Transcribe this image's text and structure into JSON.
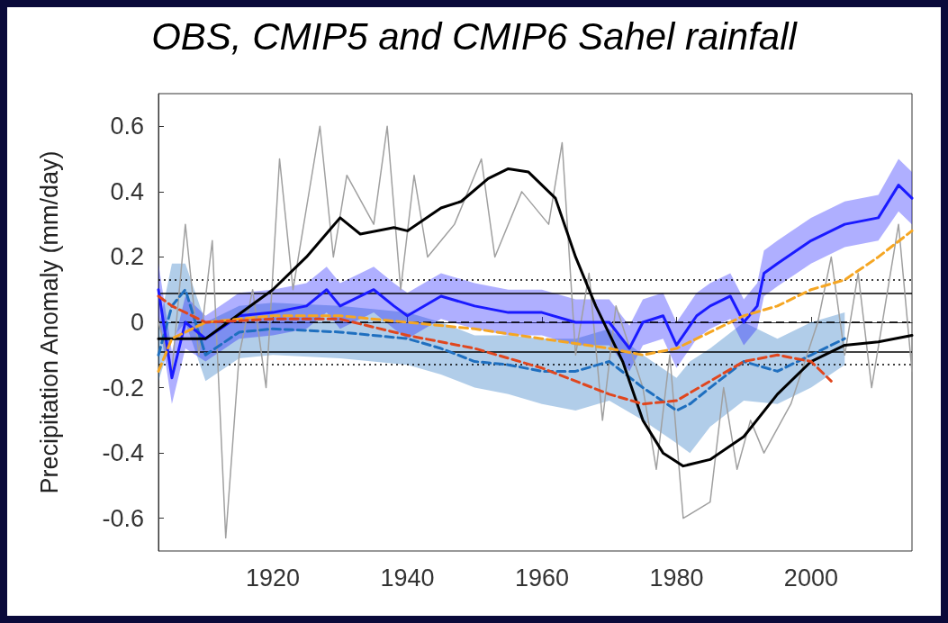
{
  "chart_data": {
    "type": "line",
    "title": "OBS, CMIP5 and CMIP6 Sahel rainfall",
    "ylabel": "Precipitation Anomaly (mm/day)",
    "xlim": [
      1903,
      2015
    ],
    "xticks": [
      1920,
      1940,
      1960,
      1980,
      2000
    ],
    "ylim": [
      -0.7,
      0.7
    ],
    "yticks": [
      -0.6,
      -0.4,
      -0.2,
      0,
      0.2,
      0.4,
      0.6
    ],
    "grid": false,
    "marker": "none",
    "series": [
      {
        "color": "#a0a0a0",
        "line_style": "solid",
        "x": [
          1903,
          1905,
          1907,
          1909,
          1911,
          1913,
          1915,
          1917,
          1919,
          1921,
          1923,
          1925,
          1927,
          1929,
          1931,
          1933,
          1935,
          1937,
          1939,
          1941,
          1943,
          1945,
          1947,
          1949,
          1951,
          1953,
          1955,
          1957,
          1959,
          1961,
          1963,
          1965,
          1967,
          1969,
          1971,
          1973,
          1975,
          1977,
          1979,
          1981,
          1983,
          1985,
          1987,
          1989,
          1991,
          1993,
          1995,
          1997,
          1999,
          2001,
          2003,
          2005,
          2007,
          2009,
          2011,
          2013,
          2015
        ],
        "values": [
          0.0,
          -0.15,
          0.3,
          -0.1,
          0.25,
          -0.66,
          -0.1,
          0.1,
          -0.2,
          0.5,
          0.1,
          0.35,
          0.6,
          0.2,
          0.45,
          null,
          0.3,
          0.6,
          0.1,
          0.45,
          0.2,
          null,
          0.3,
          null,
          0.5,
          0.2,
          null,
          0.4,
          null,
          0.3,
          0.55,
          -0.1,
          0.15,
          -0.3,
          0.05,
          null,
          -0.2,
          -0.45,
          -0.1,
          -0.6,
          null,
          -0.55,
          -0.2,
          -0.45,
          -0.3,
          -0.4,
          null,
          -0.25,
          null,
          0.0,
          0.2,
          -0.1,
          0.15,
          -0.2,
          0.05,
          0.3,
          -0.15
        ]
      },
      {
        "color": "#1f6fbf",
        "line_style": "dashed",
        "x": [
          1903,
          1905,
          1907,
          1910,
          1915,
          1920,
          1930,
          1940,
          1945,
          1950,
          1955,
          1960,
          1965,
          1970,
          1975,
          1980,
          1982,
          1985,
          1990,
          1995,
          2000,
          2005
        ],
        "values": [
          -0.1,
          0.05,
          0.1,
          -0.1,
          -0.03,
          -0.02,
          -0.03,
          -0.05,
          -0.08,
          -0.12,
          -0.13,
          -0.15,
          -0.15,
          -0.12,
          -0.2,
          -0.27,
          -0.25,
          -0.2,
          -0.12,
          -0.15,
          -0.1,
          -0.05
        ],
        "lower": [
          -0.18,
          -0.05,
          0.0,
          -0.18,
          -0.11,
          -0.1,
          -0.11,
          -0.13,
          -0.16,
          -0.2,
          -0.22,
          -0.25,
          -0.27,
          -0.24,
          -0.3,
          -0.37,
          -0.4,
          -0.32,
          -0.24,
          -0.25,
          -0.2,
          -0.13
        ],
        "upper": [
          -0.02,
          0.18,
          0.18,
          0.0,
          0.05,
          0.06,
          0.05,
          0.03,
          0.0,
          -0.04,
          -0.04,
          -0.05,
          -0.05,
          -0.02,
          -0.1,
          -0.17,
          -0.12,
          -0.08,
          0.0,
          -0.05,
          0.0,
          0.03
        ]
      },
      {
        "color": "#1a1aff",
        "line_style": "solid",
        "x": [
          1903,
          1905,
          1907,
          1910,
          1915,
          1920,
          1925,
          1928,
          1930,
          1935,
          1938,
          1940,
          1945,
          1950,
          1955,
          1960,
          1965,
          1970,
          1973,
          1975,
          1978,
          1980,
          1983,
          1985,
          1988,
          1990,
          1992,
          1993,
          1995,
          2000,
          2005,
          2010,
          2013,
          2015
        ],
        "values": [
          0.1,
          -0.17,
          0.0,
          -0.05,
          0.02,
          0.03,
          0.05,
          0.1,
          0.05,
          0.1,
          0.05,
          0.02,
          0.08,
          0.05,
          0.03,
          0.03,
          0.0,
          0.0,
          -0.08,
          0.0,
          0.02,
          -0.07,
          0.02,
          0.05,
          0.08,
          0.0,
          0.05,
          0.15,
          0.18,
          0.25,
          0.3,
          0.32,
          0.42,
          0.38
        ],
        "lower": [
          0.02,
          -0.25,
          -0.08,
          -0.12,
          -0.05,
          -0.04,
          -0.02,
          0.03,
          -0.02,
          0.03,
          -0.02,
          -0.05,
          0.01,
          -0.02,
          -0.04,
          -0.04,
          -0.07,
          -0.07,
          -0.15,
          -0.07,
          -0.05,
          -0.14,
          -0.05,
          -0.02,
          0.01,
          -0.07,
          -0.02,
          0.08,
          0.11,
          0.18,
          0.23,
          0.25,
          0.34,
          0.3
        ],
        "upper": [
          0.18,
          -0.09,
          0.08,
          0.02,
          0.09,
          0.1,
          0.12,
          0.17,
          0.12,
          0.17,
          0.12,
          0.09,
          0.15,
          0.12,
          0.1,
          0.1,
          0.07,
          0.07,
          -0.01,
          0.07,
          0.09,
          0.0,
          0.09,
          0.12,
          0.15,
          0.07,
          0.12,
          0.22,
          0.25,
          0.32,
          0.37,
          0.39,
          0.5,
          0.46
        ]
      },
      {
        "color": "#000000",
        "line_style": "solid",
        "x": [
          1903,
          1910,
          1920,
          1925,
          1930,
          1933,
          1938,
          1940,
          1945,
          1948,
          1952,
          1955,
          1958,
          1962,
          1965,
          1968,
          1972,
          1975,
          1978,
          1981,
          1985,
          1990,
          1995,
          2000,
          2005,
          2010,
          2015
        ],
        "values": [
          -0.05,
          -0.05,
          0.1,
          0.2,
          0.32,
          0.27,
          0.29,
          0.28,
          0.35,
          0.37,
          0.44,
          0.47,
          0.46,
          0.38,
          0.2,
          0.05,
          -0.12,
          -0.3,
          -0.4,
          -0.44,
          -0.42,
          -0.35,
          -0.22,
          -0.12,
          -0.07,
          -0.06,
          -0.04
        ]
      },
      {
        "color": "#f5a623",
        "line_style": "dashed",
        "x": [
          1903,
          1905,
          1910,
          1920,
          1930,
          1940,
          1950,
          1960,
          1970,
          1975,
          1980,
          1985,
          1990,
          1995,
          2000,
          2005,
          2010,
          2015
        ],
        "values": [
          -0.15,
          -0.05,
          0.0,
          0.02,
          0.02,
          0.0,
          -0.02,
          -0.05,
          -0.08,
          -0.1,
          -0.08,
          -0.03,
          0.02,
          0.05,
          0.1,
          0.13,
          0.2,
          0.28
        ]
      },
      {
        "color": "#e0461e",
        "line_style": "dashed",
        "x": [
          1903,
          1905,
          1910,
          1920,
          1930,
          1940,
          1950,
          1960,
          1970,
          1975,
          1980,
          1985,
          1990,
          1995,
          2000,
          2003
        ],
        "values": [
          0.08,
          0.05,
          0.0,
          0.01,
          0.01,
          -0.04,
          -0.08,
          -0.14,
          -0.22,
          -0.25,
          -0.24,
          -0.18,
          -0.12,
          -0.1,
          -0.12,
          -0.18
        ]
      }
    ],
    "ref_lines": [
      {
        "axis": "y",
        "value": 0.09,
        "color": "#000000",
        "line_style": "solid"
      },
      {
        "axis": "y",
        "value": -0.09,
        "color": "#000000",
        "line_style": "solid"
      },
      {
        "axis": "y",
        "value": 0.125,
        "color": "#000000",
        "line_style": "dotted"
      },
      {
        "axis": "y",
        "value": -0.125,
        "color": "#000000",
        "line_style": "dotted"
      },
      {
        "axis": "y",
        "value": 0,
        "color": "#000000",
        "line_style": "dashed"
      }
    ]
  }
}
